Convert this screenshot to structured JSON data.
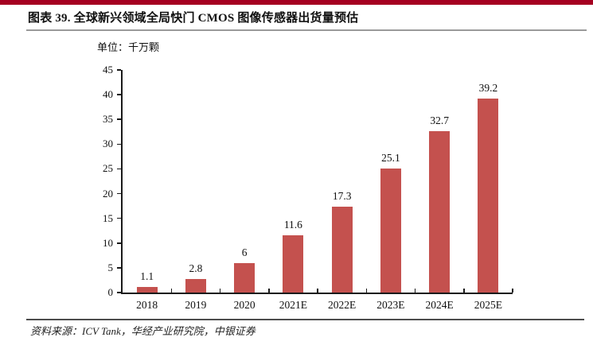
{
  "accent_color": "#A50021",
  "header": {
    "title": "图表 39. 全球新兴领域全局快门 CMOS 图像传感器出货量预估"
  },
  "unit_label": "单位：千万颗",
  "chart_data": {
    "type": "bar",
    "title": "全球新兴领域全局快门 CMOS 图像传感器出货量预估",
    "unit": "千万颗",
    "categories": [
      "2018",
      "2019",
      "2020",
      "2021E",
      "2022E",
      "2023E",
      "2024E",
      "2025E"
    ],
    "values": [
      1.1,
      2.8,
      6,
      11.6,
      17.3,
      25.1,
      32.7,
      39.2
    ],
    "value_labels": [
      "1.1",
      "2.8",
      "6",
      "11.6",
      "17.3",
      "25.1",
      "32.7",
      "39.2"
    ],
    "ylim": [
      0,
      45
    ],
    "yticks": [
      0,
      5,
      10,
      15,
      20,
      25,
      30,
      35,
      40,
      45
    ],
    "xlabel": "",
    "ylabel": "",
    "grid": false,
    "legend": "none",
    "bar_color": "#C4514E"
  },
  "footer": {
    "source": "资料来源：ICV Tank，华经产业研究院，中银证券"
  }
}
